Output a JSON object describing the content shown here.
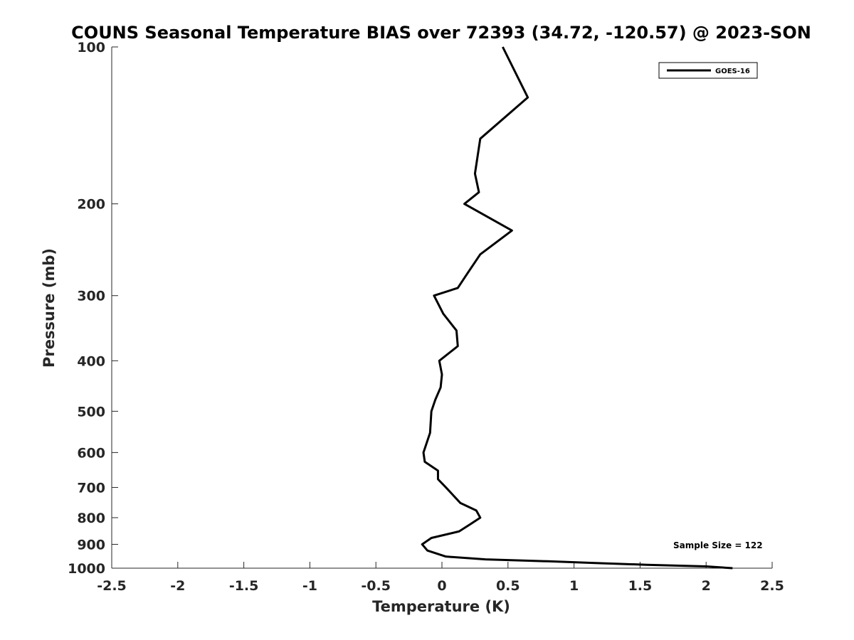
{
  "chart_data": {
    "type": "line",
    "title": "COUNS Seasonal Temperature BIAS over 72393 (34.72, -120.57) @ 2023-SON",
    "xlabel": "Temperature (K)",
    "ylabel": "Pressure (mb)",
    "xlim": [
      -2.5,
      2.5
    ],
    "ylim": [
      1000,
      100
    ],
    "yscale": "log",
    "xticks": [
      -2.5,
      -2,
      -1.5,
      -1,
      -0.5,
      0,
      0.5,
      1,
      1.5,
      2,
      2.5
    ],
    "xtick_labels": [
      "-2.5",
      "-2",
      "-1.5",
      "-1",
      "-0.5",
      "0",
      "0.5",
      "1",
      "1.5",
      "2",
      "2.5"
    ],
    "yticks": [
      100,
      200,
      300,
      400,
      500,
      600,
      700,
      800,
      900,
      1000
    ],
    "ytick_labels": [
      "100",
      "200",
      "300",
      "400",
      "500",
      "600",
      "700",
      "800",
      "900",
      "1000"
    ],
    "grid": false,
    "legend_position": "top-right",
    "line_color": "#000000",
    "series": [
      {
        "name": "GOES-16",
        "points": [
          {
            "x": 0.46,
            "y": 100
          },
          {
            "x": 0.65,
            "y": 125
          },
          {
            "x": 0.29,
            "y": 150
          },
          {
            "x": 0.25,
            "y": 175
          },
          {
            "x": 0.28,
            "y": 190
          },
          {
            "x": 0.17,
            "y": 200
          },
          {
            "x": 0.53,
            "y": 225
          },
          {
            "x": 0.29,
            "y": 250
          },
          {
            "x": 0.18,
            "y": 275
          },
          {
            "x": 0.12,
            "y": 290
          },
          {
            "x": -0.06,
            "y": 300
          },
          {
            "x": 0.01,
            "y": 325
          },
          {
            "x": 0.11,
            "y": 350
          },
          {
            "x": 0.12,
            "y": 375
          },
          {
            "x": -0.02,
            "y": 400
          },
          {
            "x": 0.0,
            "y": 425
          },
          {
            "x": -0.01,
            "y": 450
          },
          {
            "x": -0.05,
            "y": 475
          },
          {
            "x": -0.08,
            "y": 500
          },
          {
            "x": -0.09,
            "y": 550
          },
          {
            "x": -0.14,
            "y": 600
          },
          {
            "x": -0.13,
            "y": 625
          },
          {
            "x": -0.03,
            "y": 650
          },
          {
            "x": -0.03,
            "y": 675
          },
          {
            "x": 0.03,
            "y": 700
          },
          {
            "x": 0.14,
            "y": 750
          },
          {
            "x": 0.26,
            "y": 775
          },
          {
            "x": 0.29,
            "y": 800
          },
          {
            "x": 0.21,
            "y": 825
          },
          {
            "x": 0.13,
            "y": 850
          },
          {
            "x": -0.08,
            "y": 875
          },
          {
            "x": -0.15,
            "y": 900
          },
          {
            "x": -0.11,
            "y": 925
          },
          {
            "x": 0.03,
            "y": 950
          },
          {
            "x": 0.33,
            "y": 962
          },
          {
            "x": 0.8,
            "y": 970
          },
          {
            "x": 1.18,
            "y": 978
          },
          {
            "x": 1.55,
            "y": 985
          },
          {
            "x": 2.0,
            "y": 992
          },
          {
            "x": 2.2,
            "y": 1000
          }
        ]
      }
    ],
    "annotations": [
      "Sample Size = 122"
    ]
  }
}
